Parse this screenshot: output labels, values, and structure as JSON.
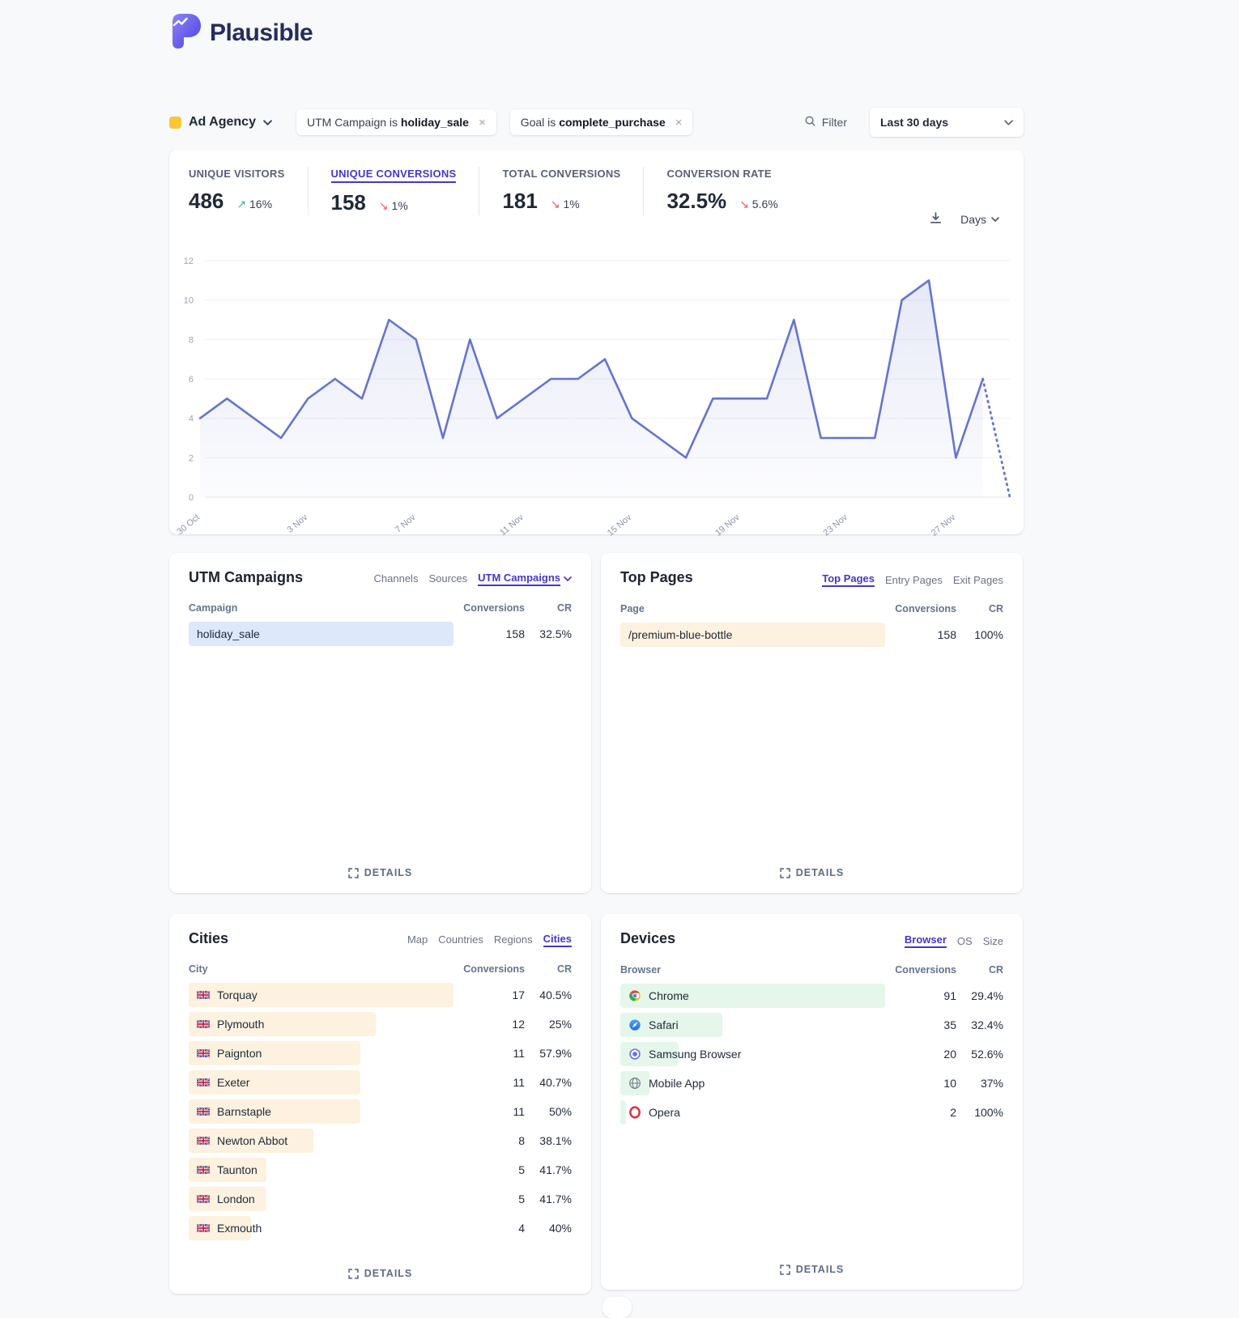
{
  "brand": {
    "name": "Plausible"
  },
  "filters": {
    "site_label": "Ad Agency",
    "site_swatch_color": "#f9c636",
    "pills": [
      {
        "prefix": "UTM Campaign is",
        "value": "holiday_sale"
      },
      {
        "prefix": "Goal is",
        "value": "complete_purchase"
      }
    ],
    "filter_label": "Filter",
    "date_range": "Last 30 days"
  },
  "metrics": [
    {
      "label": "UNIQUE VISITORS",
      "value": "486",
      "delta": "16%",
      "direction": "up",
      "selected": false
    },
    {
      "label": "UNIQUE CONVERSIONS",
      "value": "158",
      "delta": "1%",
      "direction": "down",
      "selected": true
    },
    {
      "label": "TOTAL CONVERSIONS",
      "value": "181",
      "delta": "1%",
      "direction": "down",
      "selected": false
    },
    {
      "label": "CONVERSION RATE",
      "value": "32.5%",
      "delta": "5.6%",
      "direction": "down",
      "selected": false
    }
  ],
  "chart_controls": {
    "interval_label": "Days"
  },
  "chart_data": {
    "type": "line",
    "title": "Unique conversions per day",
    "values": [
      4,
      5,
      4,
      3,
      5,
      6,
      5,
      9,
      8,
      3,
      8,
      4,
      5,
      6,
      6,
      7,
      4,
      3,
      2,
      5,
      5,
      5,
      9,
      3,
      3,
      3,
      10,
      11,
      2,
      6,
      0
    ],
    "tick_labels": [
      "30 Oct",
      "3 Nov",
      "7 Nov",
      "11 Nov",
      "15 Nov",
      "19 Nov",
      "23 Nov",
      "27 Nov"
    ],
    "tick_indices": [
      0,
      4,
      8,
      12,
      16,
      20,
      24,
      28
    ],
    "ylim": [
      0,
      12
    ],
    "yticks": [
      0,
      2,
      4,
      6,
      8,
      10,
      12
    ],
    "dashed_tail_points": 1,
    "line_color": "#6574cd",
    "grid": true,
    "legend": "none"
  },
  "panels": {
    "utm_campaigns": {
      "title": "UTM Campaigns",
      "tabs": [
        {
          "label": "Channels",
          "selected": false
        },
        {
          "label": "Sources",
          "selected": false
        },
        {
          "label": "UTM Campaigns",
          "selected": true,
          "caret": true
        }
      ],
      "columns": [
        "Campaign",
        "Conversions",
        "CR"
      ],
      "bar_color": "#dde8fa",
      "rows": [
        {
          "label": "holiday_sale",
          "conversions": "158",
          "cr": "32.5%",
          "bar_pct": 100
        }
      ],
      "details_label": "DETAILS"
    },
    "top_pages": {
      "title": "Top Pages",
      "tabs": [
        {
          "label": "Top Pages",
          "selected": true
        },
        {
          "label": "Entry Pages",
          "selected": false
        },
        {
          "label": "Exit Pages",
          "selected": false
        }
      ],
      "columns": [
        "Page",
        "Conversions",
        "CR"
      ],
      "bar_color": "#fdf1df",
      "rows": [
        {
          "label": "/premium-blue-bottle",
          "conversions": "158",
          "cr": "100%",
          "bar_pct": 100
        }
      ],
      "details_label": "DETAILS"
    },
    "cities": {
      "title": "Cities",
      "tabs": [
        {
          "label": "Map",
          "selected": false
        },
        {
          "label": "Countries",
          "selected": false
        },
        {
          "label": "Regions",
          "selected": false
        },
        {
          "label": "Cities",
          "selected": true
        }
      ],
      "columns": [
        "City",
        "Conversions",
        "CR"
      ],
      "bar_color": "#fdf1df",
      "rows": [
        {
          "label": "Torquay",
          "icon": "uk-flag",
          "conversions": "17",
          "cr": "40.5%",
          "bar_pct": 100
        },
        {
          "label": "Plymouth",
          "icon": "uk-flag",
          "conversions": "12",
          "cr": "25%",
          "bar_pct": 70.6
        },
        {
          "label": "Paignton",
          "icon": "uk-flag",
          "conversions": "11",
          "cr": "57.9%",
          "bar_pct": 64.7
        },
        {
          "label": "Exeter",
          "icon": "uk-flag",
          "conversions": "11",
          "cr": "40.7%",
          "bar_pct": 64.7
        },
        {
          "label": "Barnstaple",
          "icon": "uk-flag",
          "conversions": "11",
          "cr": "50%",
          "bar_pct": 64.7
        },
        {
          "label": "Newton Abbot",
          "icon": "uk-flag",
          "conversions": "8",
          "cr": "38.1%",
          "bar_pct": 47.1
        },
        {
          "label": "Taunton",
          "icon": "uk-flag",
          "conversions": "5",
          "cr": "41.7%",
          "bar_pct": 29.4
        },
        {
          "label": "London",
          "icon": "uk-flag",
          "conversions": "5",
          "cr": "41.7%",
          "bar_pct": 29.4
        },
        {
          "label": "Exmouth",
          "icon": "uk-flag",
          "conversions": "4",
          "cr": "40%",
          "bar_pct": 23.5
        }
      ],
      "details_label": "DETAILS"
    },
    "devices": {
      "title": "Devices",
      "tabs": [
        {
          "label": "Browser",
          "selected": true
        },
        {
          "label": "OS",
          "selected": false
        },
        {
          "label": "Size",
          "selected": false
        }
      ],
      "columns": [
        "Browser",
        "Conversions",
        "CR"
      ],
      "bar_color": "#e5f6ea",
      "rows": [
        {
          "label": "Chrome",
          "icon": "chrome",
          "conversions": "91",
          "cr": "29.4%",
          "bar_pct": 100
        },
        {
          "label": "Safari",
          "icon": "safari",
          "conversions": "35",
          "cr": "32.4%",
          "bar_pct": 38.5
        },
        {
          "label": "Samsung Browser",
          "icon": "samsung",
          "conversions": "20",
          "cr": "52.6%",
          "bar_pct": 22
        },
        {
          "label": "Mobile App",
          "icon": "globe",
          "conversions": "10",
          "cr": "37%",
          "bar_pct": 11
        },
        {
          "label": "Opera",
          "icon": "opera",
          "conversions": "2",
          "cr": "100%",
          "bar_pct": 2.2
        }
      ],
      "details_label": "DETAILS"
    }
  }
}
